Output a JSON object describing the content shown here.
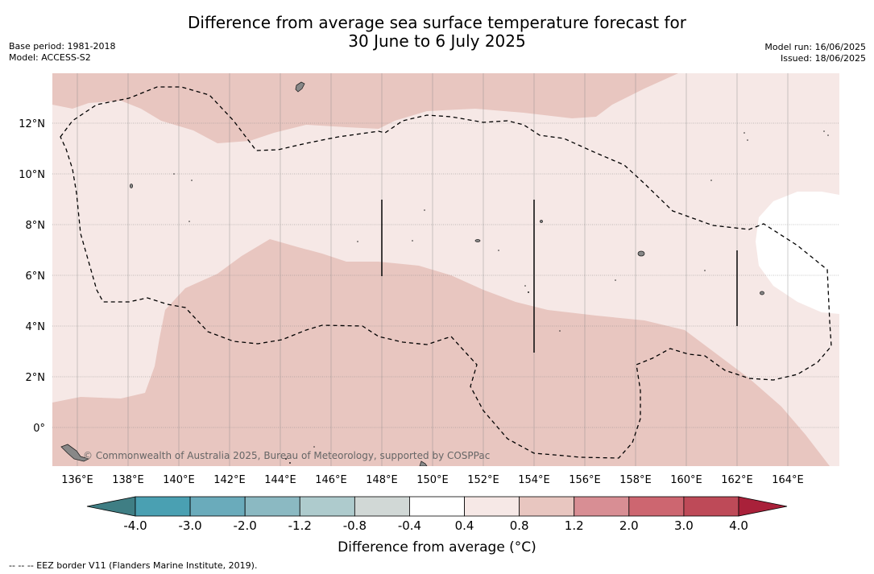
{
  "title_line1": "Difference from average sea surface temperature forecast for",
  "title_line2": "30 June to 6 July 2025",
  "base_period": "Base period: 1981-2018",
  "model": "Model: ACCESS-S2",
  "model_run": "Model run: 16/06/2025",
  "issued": "Issued: 18/06/2025",
  "copyright": "© Commonwealth of Australia 2025, Bureau of Meteorology, supported by COSPPac",
  "x_ticks": [
    "136°E",
    "138°E",
    "140°E",
    "142°E",
    "144°E",
    "146°E",
    "148°E",
    "150°E",
    "152°E",
    "154°E",
    "156°E",
    "158°E",
    "160°E",
    "162°E",
    "164°E"
  ],
  "y_ticks": [
    "12°N",
    "10°N",
    "8°N",
    "6°N",
    "4°N",
    "2°N",
    "0°"
  ],
  "colorbar": {
    "title": "Difference from average (°C)",
    "labels": [
      "-4.0",
      "-3.0",
      "-2.0",
      "-1.2",
      "-0.8",
      "-0.4",
      "0.4",
      "0.8",
      "1.2",
      "2.0",
      "3.0",
      "4.0"
    ],
    "colors": [
      "#3f7e84",
      "#4aa0b2",
      "#6aabbb",
      "#8bb9c2",
      "#aecbcd",
      "#d1d8d6",
      "#ffffff",
      "#f6e8e6",
      "#e8c6c0",
      "#d88e94",
      "#cd6670",
      "#be4a58",
      "#a9213a"
    ]
  },
  "footer": "--  --  -- EEZ border V11 (Flanders Marine Institute, 2019)."
}
